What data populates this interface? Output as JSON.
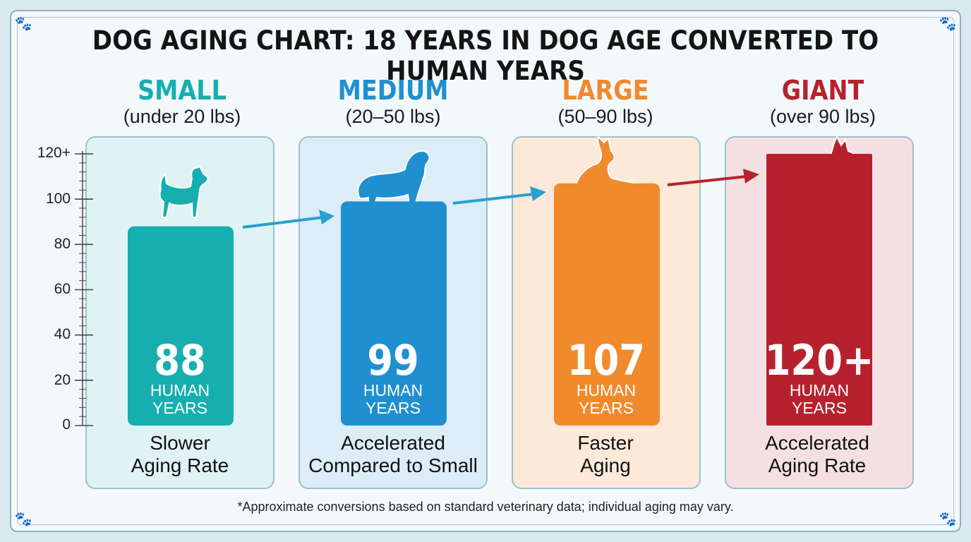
{
  "title": "DOG AGING CHART: 18 YEARS IN DOG AGE CONVERTED TO HUMAN YEARS",
  "footnote": "*Approximate conversions based on standard veterinary data; individual aging may vary.",
  "colors": {
    "small": "#17aeb0",
    "medium": "#1f8fd0",
    "large": "#f08a2c",
    "giant": "#b7212e"
  },
  "chart_data": {
    "type": "bar",
    "title": "DOG AGING CHART: 18 YEARS IN DOG AGE CONVERTED TO HUMAN YEARS",
    "categories": [
      "SMALL",
      "MEDIUM",
      "LARGE",
      "GIANT"
    ],
    "values": [
      88,
      99,
      107,
      120
    ],
    "ylim": [
      0,
      120
    ],
    "y_ticks": [
      "0",
      "20",
      "40",
      "60",
      "80",
      "100",
      "120+"
    ],
    "grid": false,
    "legend": "none",
    "bars": [
      {
        "name": "SMALL",
        "subtitle": "(under 20 lbs)",
        "value": 88,
        "value_label": "88",
        "unit": [
          "HUMAN",
          "YEARS"
        ],
        "description": [
          "Slower",
          "Aging Rate"
        ],
        "icon": "chihuahua-silhouette-icon"
      },
      {
        "name": "MEDIUM",
        "subtitle": "(20–50 lbs)",
        "value": 99,
        "value_label": "99",
        "unit": [
          "HUMAN",
          "YEARS"
        ],
        "description": [
          "Accelerated",
          "Compared to Small"
        ],
        "icon": "spaniel-silhouette-icon"
      },
      {
        "name": "LARGE",
        "subtitle": "(50–90 lbs)",
        "value": 107,
        "value_label": "107",
        "unit": [
          "HUMAN",
          "YEARS"
        ],
        "description": [
          "Faster",
          "Aging"
        ],
        "icon": "shepherd-silhouette-icon"
      },
      {
        "name": "GIANT",
        "subtitle": "(over 90 lbs)",
        "value": 120,
        "value_label": "120+",
        "unit": [
          "HUMAN",
          "YEARS"
        ],
        "description": [
          "Accelerated",
          "Aging Rate"
        ],
        "icon": "great-dane-silhouette-icon"
      }
    ]
  }
}
